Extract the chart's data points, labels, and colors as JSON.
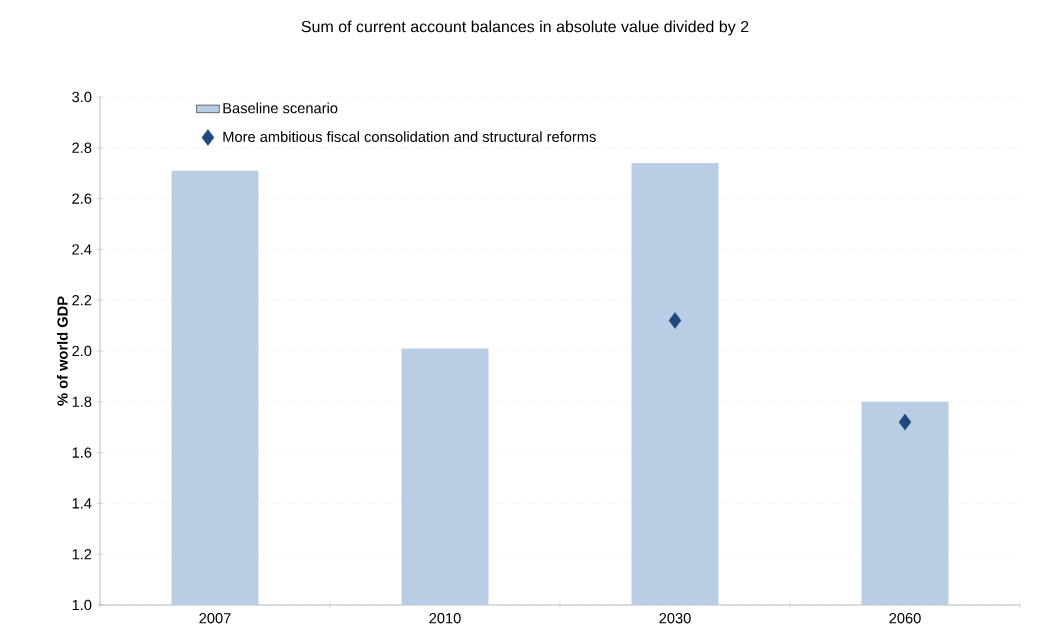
{
  "chart_data": {
    "type": "bar",
    "title": "Sum of current account balances in absolute value divided by 2",
    "ylabel": "% of world GDP",
    "categories": [
      "2007",
      "2010",
      "2030",
      "2060"
    ],
    "series": [
      {
        "name": "Baseline scenario",
        "color": "#b9cde5",
        "values": [
          2.71,
          2.01,
          2.74,
          1.8
        ]
      },
      {
        "name": "More ambitious fiscal consolidation and structural reforms",
        "type": "scatter",
        "color": "#1f497d",
        "marker": "diamond",
        "values": [
          null,
          null,
          2.12,
          1.72
        ]
      }
    ],
    "ylim": [
      1.0,
      3.0
    ],
    "yticks": [
      {
        "value": 1.0,
        "label": "1.0"
      },
      {
        "value": 1.2,
        "label": "1.2"
      },
      {
        "value": 1.4,
        "label": "1.4"
      },
      {
        "value": 1.6,
        "label": "1.6"
      },
      {
        "value": 1.8,
        "label": "1.8"
      },
      {
        "value": 2.0,
        "label": "2.0"
      },
      {
        "value": 2.2,
        "label": "2.2"
      },
      {
        "value": 2.4,
        "label": "2.4"
      },
      {
        "value": 2.6,
        "label": "2.6"
      },
      {
        "value": 2.8,
        "label": "2.8"
      },
      {
        "value": 3.0,
        "label": "3.0"
      }
    ],
    "grid": "y",
    "legend": "top left"
  }
}
